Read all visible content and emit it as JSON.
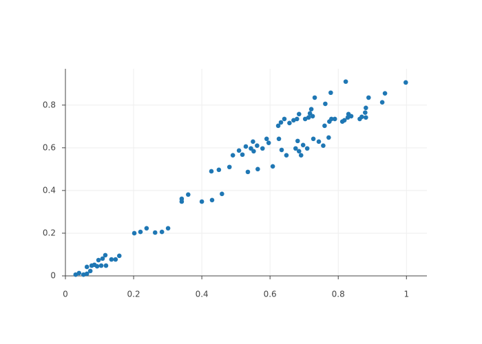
{
  "chart_data": {
    "type": "scatter",
    "color": "#1f77b4",
    "grid": true,
    "xlim": [
      0,
      1.06
    ],
    "ylim": [
      0,
      0.97
    ],
    "xticks": [
      0,
      0.2,
      0.4,
      0.6,
      0.8,
      1
    ],
    "yticks": [
      0,
      0.2,
      0.4,
      0.6,
      0.8
    ],
    "x": [
      0.03,
      0.04,
      0.053,
      0.063,
      0.073,
      0.063,
      0.077,
      0.085,
      0.093,
      0.105,
      0.119,
      0.097,
      0.109,
      0.117,
      0.135,
      0.147,
      0.158,
      0.202,
      0.22,
      0.238,
      0.263,
      0.283,
      0.301,
      0.341,
      0.341,
      0.36,
      0.4,
      0.43,
      0.459,
      0.428,
      0.45,
      0.481,
      0.491,
      0.509,
      0.519,
      0.529,
      0.535,
      0.544,
      0.55,
      0.552,
      0.562,
      0.564,
      0.578,
      0.59,
      0.596,
      0.608,
      0.626,
      0.624,
      0.632,
      0.634,
      0.642,
      0.648,
      0.657,
      0.669,
      0.675,
      0.679,
      0.681,
      0.685,
      0.685,
      0.691,
      0.697,
      0.703,
      0.709,
      0.713,
      0.717,
      0.721,
      0.725,
      0.727,
      0.731,
      0.743,
      0.756,
      0.76,
      0.762,
      0.772,
      0.774,
      0.778,
      0.78,
      0.79,
      0.812,
      0.818,
      0.822,
      0.828,
      0.83,
      0.838,
      0.863,
      0.869,
      0.879,
      0.881,
      0.881,
      0.889,
      0.929,
      0.937,
      0.998
    ],
    "values": [
      0.006,
      0.013,
      0.006,
      0.01,
      0.023,
      0.042,
      0.048,
      0.052,
      0.045,
      0.048,
      0.048,
      0.074,
      0.081,
      0.097,
      0.077,
      0.077,
      0.094,
      0.2,
      0.206,
      0.223,
      0.203,
      0.206,
      0.223,
      0.361,
      0.348,
      0.381,
      0.348,
      0.355,
      0.384,
      0.49,
      0.497,
      0.51,
      0.565,
      0.587,
      0.568,
      0.606,
      0.487,
      0.597,
      0.629,
      0.584,
      0.61,
      0.5,
      0.597,
      0.642,
      0.623,
      0.513,
      0.642,
      0.703,
      0.719,
      0.59,
      0.735,
      0.565,
      0.716,
      0.729,
      0.597,
      0.735,
      0.632,
      0.758,
      0.584,
      0.565,
      0.613,
      0.735,
      0.597,
      0.742,
      0.761,
      0.781,
      0.748,
      0.642,
      0.835,
      0.629,
      0.61,
      0.703,
      0.806,
      0.648,
      0.723,
      0.858,
      0.735,
      0.735,
      0.723,
      0.729,
      0.91,
      0.742,
      0.758,
      0.748,
      0.735,
      0.745,
      0.765,
      0.787,
      0.742,
      0.835,
      0.813,
      0.855,
      0.906
    ]
  }
}
